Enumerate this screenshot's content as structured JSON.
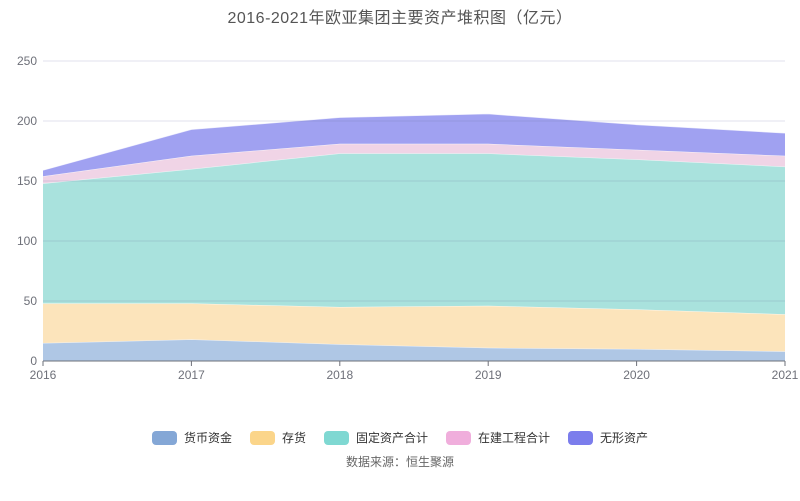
{
  "title": "2016-2021年欧亚集团主要资产堆积图（亿元）",
  "source": "数据来源：恒生聚源",
  "axis": {
    "line_color": "#6E7079",
    "label_color": "#6E7079",
    "grid_color": "rgba(104,112,160,0.20)"
  },
  "chart_data": {
    "type": "area",
    "stacked": true,
    "title": "2016-2021年欧亚集团主要资产堆积图（亿元）",
    "categories": [
      "2016",
      "2017",
      "2018",
      "2019",
      "2020",
      "2021"
    ],
    "series": [
      {
        "name": "货币资金",
        "values": [
          15,
          18,
          14,
          11,
          10,
          8
        ],
        "color": "#84A7D6",
        "fill": "#AFC7E5"
      },
      {
        "name": "存货",
        "values": [
          33,
          30,
          31,
          35,
          33,
          31
        ],
        "color": "#FBD58A",
        "fill": "#FCE4BB"
      },
      {
        "name": "固定资产合计",
        "values": [
          100,
          112,
          128,
          127,
          125,
          123
        ],
        "color": "#7FD8D2",
        "fill": "#A9E2DD"
      },
      {
        "name": "在建工程合计",
        "values": [
          6,
          11,
          8,
          8,
          8,
          9
        ],
        "color": "#F0AEDC",
        "fill": "#F0D4E6"
      },
      {
        "name": "无形资产",
        "values": [
          5,
          22,
          22,
          25,
          21,
          19
        ],
        "color": "#7B7DEC",
        "fill": "#A0A1F1"
      }
    ],
    "xlabel": "",
    "ylabel": "",
    "ylim": [
      0,
      250
    ],
    "yticks": [
      0,
      50,
      100,
      150,
      200,
      250
    ],
    "grid": true,
    "legend_position": "bottom"
  }
}
